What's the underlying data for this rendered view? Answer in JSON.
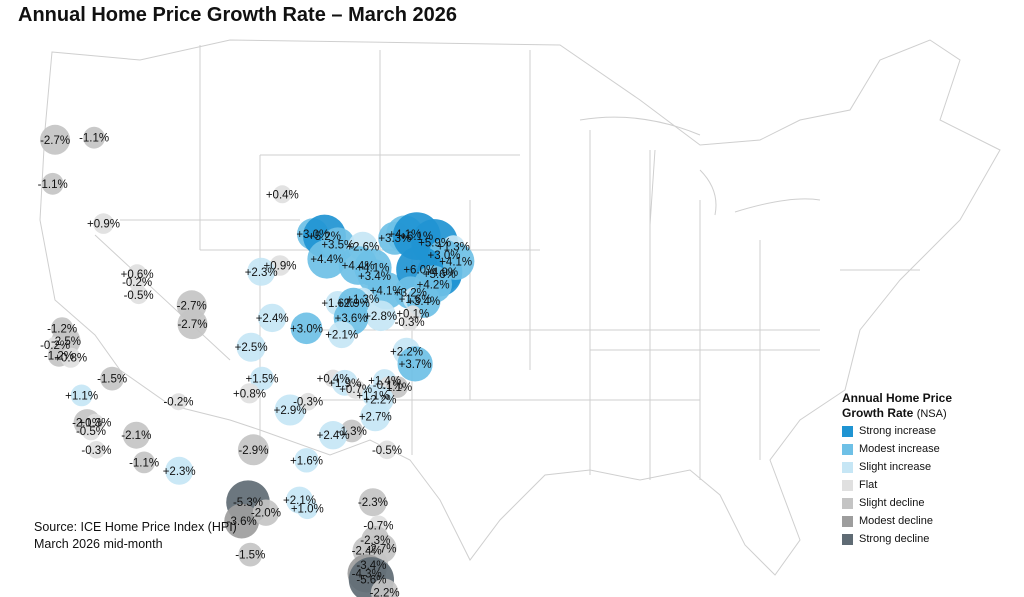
{
  "title": "Annual Home Price Growth Rate – March 2026",
  "source": {
    "line1": "Source: ICE Home Price Index (HPI)",
    "line2": "March 2026 mid-month"
  },
  "legend": {
    "title": "Annual Home Price",
    "title2": "Growth Rate",
    "suffix": "(NSA)",
    "items": [
      {
        "label": "Strong increase",
        "color": "#1f94d2"
      },
      {
        "label": "Modest increase",
        "color": "#6ec0e6"
      },
      {
        "label": "Slight increase",
        "color": "#c6e6f5"
      },
      {
        "label": "Flat",
        "color": "#e0e0e0"
      },
      {
        "label": "Slight decline",
        "color": "#c4c4c4"
      },
      {
        "label": "Modest decline",
        "color": "#9d9d9d"
      },
      {
        "label": "Strong decline",
        "color": "#5f6b74"
      }
    ]
  },
  "markets": [
    {
      "label": "-2.7%",
      "value": -2.7,
      "cat": 4,
      "lon": -122.4,
      "lat": 47.6
    },
    {
      "label": "-1.1%",
      "value": -1.1,
      "cat": 4,
      "lon": -117.4,
      "lat": 47.7
    },
    {
      "label": "-1.1%",
      "value": -1.1,
      "cat": 4,
      "lon": -122.7,
      "lat": 45.5
    },
    {
      "label": "+0.9%",
      "value": 0.9,
      "cat": 3,
      "lon": -116.2,
      "lat": 43.6
    },
    {
      "label": "+0.6%",
      "value": 0.6,
      "cat": 3,
      "lon": -111.9,
      "lat": 41.2
    },
    {
      "label": "-0.2%",
      "value": -0.2,
      "cat": 3,
      "lon": -111.9,
      "lat": 40.8
    },
    {
      "label": "-0.5%",
      "value": -0.5,
      "cat": 3,
      "lon": -111.7,
      "lat": 40.2
    },
    {
      "label": "-1.2%",
      "value": -1.2,
      "cat": 4,
      "lon": -121.5,
      "lat": 38.6
    },
    {
      "label": "-2.5%",
      "value": -2.5,
      "cat": 4,
      "lon": -121.0,
      "lat": 38.0
    },
    {
      "label": "-0.2%",
      "value": -0.2,
      "cat": 3,
      "lon": -122.4,
      "lat": 37.8
    },
    {
      "label": "-1.2%",
      "value": -1.2,
      "cat": 4,
      "lon": -121.9,
      "lat": 37.3
    },
    {
      "label": "+0.8%",
      "value": 0.8,
      "cat": 3,
      "lon": -120.4,
      "lat": 37.2
    },
    {
      "label": "-1.5%",
      "value": -1.5,
      "cat": 4,
      "lon": -115.1,
      "lat": 36.2
    },
    {
      "label": "+1.1%",
      "value": 1.1,
      "cat": 2,
      "lon": -119.0,
      "lat": 35.4
    },
    {
      "label": "-2.1%",
      "value": -2.1,
      "cat": 4,
      "lon": -118.3,
      "lat": 34.1
    },
    {
      "label": "+0.3%",
      "value": 0.3,
      "cat": 3,
      "lon": -117.3,
      "lat": 34.1
    },
    {
      "label": "-0.5%",
      "value": -0.5,
      "cat": 3,
      "lon": -117.8,
      "lat": 33.7
    },
    {
      "label": "-0.3%",
      "value": -0.3,
      "cat": 3,
      "lon": -117.1,
      "lat": 32.8
    },
    {
      "label": "-2.1%",
      "value": -2.1,
      "cat": 4,
      "lon": -112.0,
      "lat": 33.5
    },
    {
      "label": "-1.1%",
      "value": -1.1,
      "cat": 4,
      "lon": -111.0,
      "lat": 32.2
    },
    {
      "label": "-2.7%",
      "value": -2.7,
      "cat": 4,
      "lon": -104.9,
      "lat": 39.7
    },
    {
      "label": "-2.7%",
      "value": -2.7,
      "cat": 4,
      "lon": -104.8,
      "lat": 38.8
    },
    {
      "label": "-0.2%",
      "value": -0.2,
      "cat": 3,
      "lon": -106.6,
      "lat": 35.1
    },
    {
      "label": "+2.3%",
      "value": 2.3,
      "cat": 2,
      "lon": -106.5,
      "lat": 31.8
    },
    {
      "label": "+0.4%",
      "value": 0.4,
      "cat": 3,
      "lon": -93.3,
      "lat": 45.0
    },
    {
      "label": "+0.9%",
      "value": 0.9,
      "cat": 3,
      "lon": -93.6,
      "lat": 41.6
    },
    {
      "label": "+2.3%",
      "value": 2.3,
      "cat": 2,
      "lon": -96.0,
      "lat": 41.3
    },
    {
      "label": "+2.4%",
      "value": 2.4,
      "cat": 2,
      "lon": -94.6,
      "lat": 39.1
    },
    {
      "label": "+2.5%",
      "value": 2.5,
      "cat": 2,
      "lon": -97.3,
      "lat": 37.7
    },
    {
      "label": "+1.5%",
      "value": 1.5,
      "cat": 2,
      "lon": -95.9,
      "lat": 36.2
    },
    {
      "label": "+0.8%",
      "value": 0.8,
      "cat": 3,
      "lon": -97.5,
      "lat": 35.5
    },
    {
      "label": "-2.9%",
      "value": -2.9,
      "cat": 4,
      "lon": -97.0,
      "lat": 32.8
    },
    {
      "label": "-5.3%",
      "value": -5.3,
      "cat": 6,
      "lon": -97.7,
      "lat": 30.3
    },
    {
      "label": "-3.6%",
      "value": -3.6,
      "cat": 5,
      "lon": -98.5,
      "lat": 29.4
    },
    {
      "label": "-2.0%",
      "value": -2.0,
      "cat": 4,
      "lon": -95.4,
      "lat": 29.8
    },
    {
      "label": "-1.5%",
      "value": -1.5,
      "cat": 4,
      "lon": -97.4,
      "lat": 27.8
    },
    {
      "label": "+2.9%",
      "value": 2.9,
      "cat": 2,
      "lon": -92.3,
      "lat": 34.7
    },
    {
      "label": "+3.0%",
      "value": 3.0,
      "cat": 1,
      "lon": -90.2,
      "lat": 38.6
    },
    {
      "label": "+3.0%",
      "value": 3.0,
      "cat": 1,
      "lon": -89.4,
      "lat": 43.1
    },
    {
      "label": "+5.2%",
      "value": 5.2,
      "cat": 0,
      "lon": -87.9,
      "lat": 43.0
    },
    {
      "label": "+3.5%",
      "value": 3.5,
      "cat": 1,
      "lon": -86.2,
      "lat": 42.6
    },
    {
      "label": "+4.4%",
      "value": 4.4,
      "cat": 1,
      "lon": -87.6,
      "lat": 41.9
    },
    {
      "label": "+2.6%",
      "value": 2.6,
      "cat": 2,
      "lon": -83.0,
      "lat": 42.5
    },
    {
      "label": "+4.1%",
      "value": 4.1,
      "cat": 1,
      "lon": -81.7,
      "lat": 41.5
    },
    {
      "label": "+4.4%",
      "value": 4.4,
      "cat": 1,
      "lon": -83.6,
      "lat": 41.6
    },
    {
      "label": "+3.4%",
      "value": 3.4,
      "cat": 1,
      "lon": -81.5,
      "lat": 41.1
    },
    {
      "label": "+4.1%",
      "value": 4.1,
      "cat": 1,
      "lon": -80.0,
      "lat": 40.4
    },
    {
      "label": "+1.3%",
      "value": 1.3,
      "cat": 2,
      "lon": -83.0,
      "lat": 40.0
    },
    {
      "label": "+2.8%",
      "value": 2.8,
      "cat": 2,
      "lon": -80.7,
      "lat": 39.2
    },
    {
      "label": "+1.6%",
      "value": 1.6,
      "cat": 2,
      "lon": -86.2,
      "lat": 39.8
    },
    {
      "label": "+3.6%",
      "value": 3.6,
      "cat": 1,
      "lon": -84.5,
      "lat": 39.1
    },
    {
      "label": "+2.9%",
      "value": 2.9,
      "cat": 1,
      "lon": -84.2,
      "lat": 39.8
    },
    {
      "label": "+2.1%",
      "value": 2.1,
      "cat": 2,
      "lon": -85.7,
      "lat": 38.3
    },
    {
      "label": "+3.3%",
      "value": 3.3,
      "cat": 1,
      "lon": -78.9,
      "lat": 42.9
    },
    {
      "label": "+4.1%",
      "value": 4.1,
      "cat": 1,
      "lon": -77.6,
      "lat": 43.1
    },
    {
      "label": "+6.1%",
      "value": 6.1,
      "cat": 0,
      "lon": -76.1,
      "lat": 43.0
    },
    {
      "label": "+5.9%",
      "value": 5.9,
      "cat": 0,
      "lon": -73.8,
      "lat": 42.7
    },
    {
      "label": "+1.3%",
      "value": 1.3,
      "cat": 2,
      "lon": -71.4,
      "lat": 42.5
    },
    {
      "label": "+3.0%",
      "value": 3.0,
      "cat": 1,
      "lon": -72.6,
      "lat": 42.1
    },
    {
      "label": "+4.9%",
      "value": 4.9,
      "cat": 0,
      "lon": -72.9,
      "lat": 41.3
    },
    {
      "label": "+5.6%",
      "value": 5.6,
      "cat": 0,
      "lon": -73.2,
      "lat": 41.2
    },
    {
      "label": "+4.1%",
      "value": 4.1,
      "cat": 1,
      "lon": -71.1,
      "lat": 41.8
    },
    {
      "label": "+6.0%",
      "value": 6.0,
      "cat": 0,
      "lon": -75.7,
      "lat": 41.4
    },
    {
      "label": "+4.2%",
      "value": 4.2,
      "cat": 1,
      "lon": -74.0,
      "lat": 40.7
    },
    {
      "label": "+3.2%",
      "value": 3.2,
      "cat": 1,
      "lon": -76.9,
      "lat": 40.3
    },
    {
      "label": "+1.6%",
      "value": 1.6,
      "cat": 2,
      "lon": -76.3,
      "lat": 40.0
    },
    {
      "label": "+3.4%",
      "value": 3.4,
      "cat": 1,
      "lon": -75.2,
      "lat": 39.9
    },
    {
      "label": "+0.1%",
      "value": 0.1,
      "cat": 3,
      "lon": -76.6,
      "lat": 39.3
    },
    {
      "label": "-0.3%",
      "value": -0.3,
      "cat": 3,
      "lon": -77.0,
      "lat": 38.9
    },
    {
      "label": "+2.2%",
      "value": 2.2,
      "cat": 2,
      "lon": -77.4,
      "lat": 37.5
    },
    {
      "label": "+3.7%",
      "value": 3.7,
      "cat": 1,
      "lon": -76.3,
      "lat": 36.9
    },
    {
      "label": "+0.4%",
      "value": 0.4,
      "cat": 3,
      "lon": -86.8,
      "lat": 36.2
    },
    {
      "label": "+1.9%",
      "value": 1.9,
      "cat": 2,
      "lon": -85.3,
      "lat": 36.0
    },
    {
      "label": "+0.7%",
      "value": 0.7,
      "cat": 3,
      "lon": -83.9,
      "lat": 35.7
    },
    {
      "label": "+1.4%",
      "value": 1.4,
      "cat": 2,
      "lon": -80.2,
      "lat": 36.1
    },
    {
      "label": "-0.1%",
      "value": -0.1,
      "cat": 3,
      "lon": -79.8,
      "lat": 35.9
    },
    {
      "label": "-1.1%",
      "value": -1.1,
      "cat": 4,
      "lon": -78.6,
      "lat": 35.8
    },
    {
      "label": "+1.1%",
      "value": 1.1,
      "cat": 2,
      "lon": -81.7,
      "lat": 35.4
    },
    {
      "label": "+2.2%",
      "value": 2.2,
      "cat": 2,
      "lon": -80.8,
      "lat": 35.2
    },
    {
      "label": "+2.7%",
      "value": 2.7,
      "cat": 2,
      "lon": -81.4,
      "lat": 34.4
    },
    {
      "label": "-1.3%",
      "value": -1.3,
      "cat": 4,
      "lon": -84.4,
      "lat": 33.7
    },
    {
      "label": "-0.5%",
      "value": -0.5,
      "cat": 3,
      "lon": -79.9,
      "lat": 32.8
    },
    {
      "label": "-0.3%",
      "value": -0.3,
      "cat": 3,
      "lon": -90.0,
      "lat": 35.1
    },
    {
      "label": "+2.4%",
      "value": 2.4,
      "cat": 2,
      "lon": -86.8,
      "lat": 33.5
    },
    {
      "label": "+1.6%",
      "value": 1.6,
      "cat": 2,
      "lon": -90.2,
      "lat": 32.3
    },
    {
      "label": "+2.1%",
      "value": 2.1,
      "cat": 2,
      "lon": -91.1,
      "lat": 30.4
    },
    {
      "label": "+1.0%",
      "value": 1.0,
      "cat": 2,
      "lon": -90.1,
      "lat": 30.0
    },
    {
      "label": "-2.3%",
      "value": -2.3,
      "cat": 4,
      "lon": -81.7,
      "lat": 30.3
    },
    {
      "label": "-0.7%",
      "value": -0.7,
      "cat": 3,
      "lon": -81.0,
      "lat": 29.2
    },
    {
      "label": "-2.3%",
      "value": -2.3,
      "cat": 4,
      "lon": -81.4,
      "lat": 28.5
    },
    {
      "label": "-2.7%",
      "value": -2.7,
      "cat": 4,
      "lon": -80.6,
      "lat": 28.1
    },
    {
      "label": "-2.4%",
      "value": -2.4,
      "cat": 4,
      "lon": -82.5,
      "lat": 28.0
    },
    {
      "label": "-3.4%",
      "value": -3.4,
      "cat": 4,
      "lon": -81.9,
      "lat": 27.3
    },
    {
      "label": "-4.3%",
      "value": -4.3,
      "cat": 5,
      "lon": -82.5,
      "lat": 26.9
    },
    {
      "label": "-5.6%",
      "value": -5.6,
      "cat": 6,
      "lon": -81.9,
      "lat": 26.6
    },
    {
      "label": "-2.2%",
      "value": -2.2,
      "cat": 4,
      "lon": -80.2,
      "lat": 26.0
    }
  ]
}
